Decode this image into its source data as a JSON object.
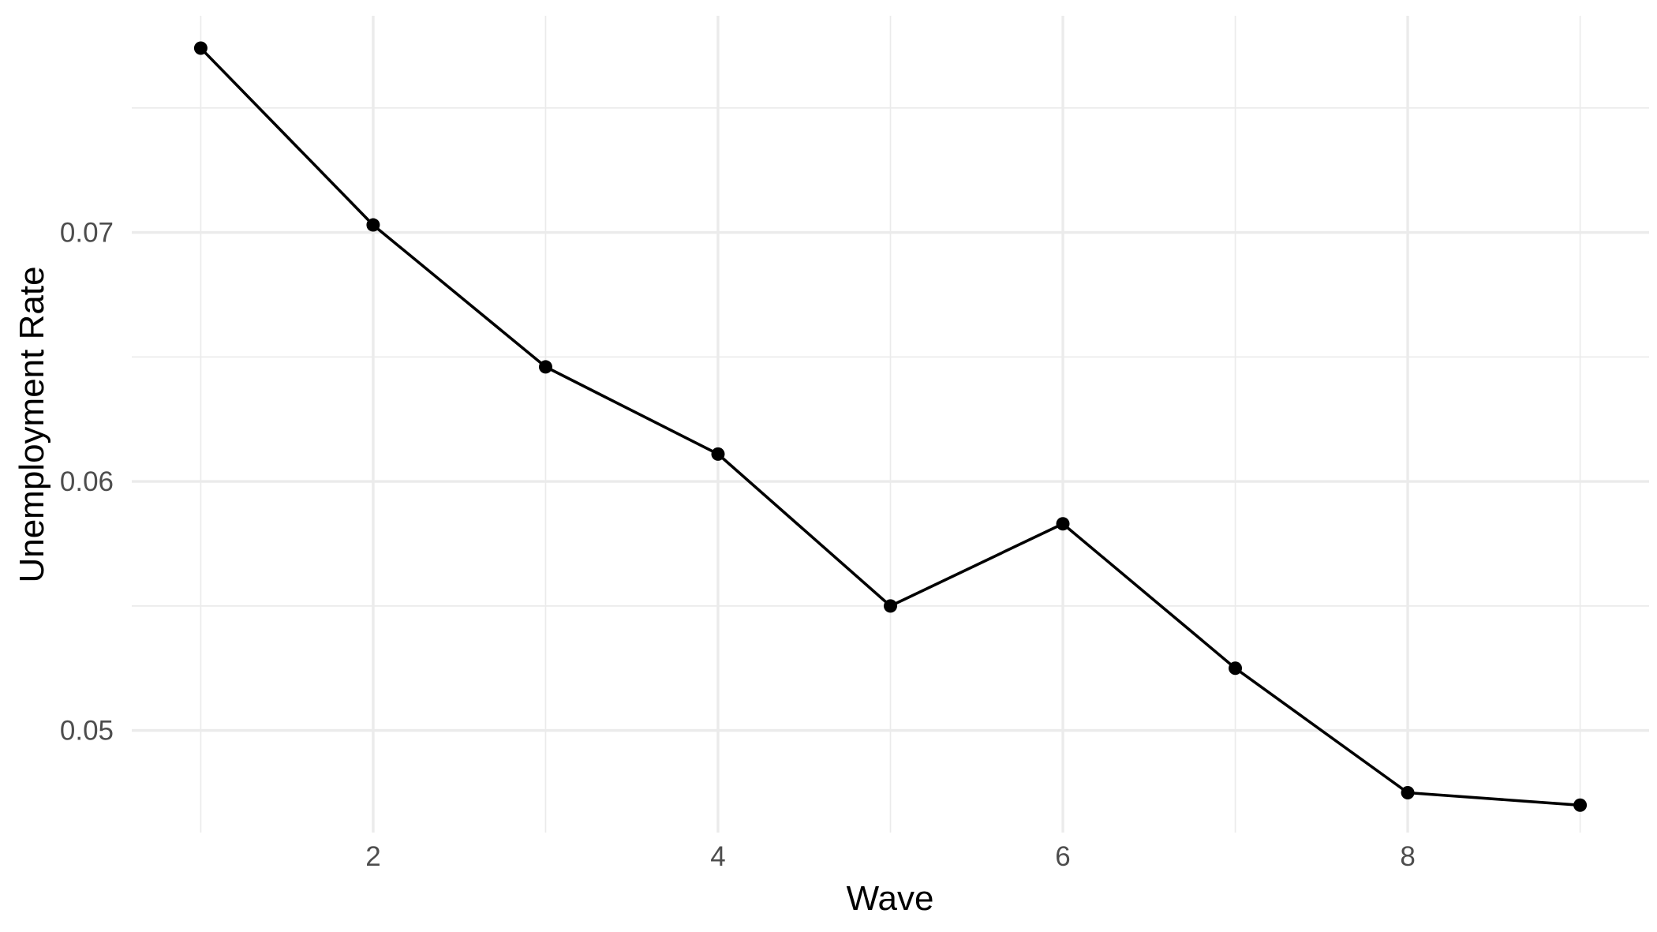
{
  "chart_data": {
    "type": "line",
    "title": "",
    "xlabel": "Wave",
    "ylabel": "Unemployment Rate",
    "x": [
      1,
      2,
      3,
      4,
      5,
      6,
      7,
      8,
      9
    ],
    "series": [
      {
        "values": [
          0.0774,
          0.0703,
          0.0646,
          0.0611,
          0.055,
          0.0583,
          0.0525,
          0.0475,
          0.047
        ]
      }
    ],
    "xlim": [
      0.6,
      9.4
    ],
    "ylim": [
      0.0459,
      0.0787
    ],
    "x_ticks": [
      2,
      4,
      6,
      8
    ],
    "x_tick_labels": [
      "2",
      "4",
      "6",
      "8"
    ],
    "x_minor_ticks": [
      1,
      3,
      5,
      7,
      9
    ],
    "y_ticks": [
      0.05,
      0.06,
      0.07
    ],
    "y_tick_labels": [
      "0.05",
      "0.06",
      "0.07"
    ],
    "y_minor_ticks": [
      0.055,
      0.065,
      0.075
    ],
    "grid": true,
    "legend": "none",
    "colors": {
      "line": "#000000",
      "grid": "#ebebeb",
      "tick_text": "#4d4d4d",
      "background": "#ffffff"
    }
  }
}
